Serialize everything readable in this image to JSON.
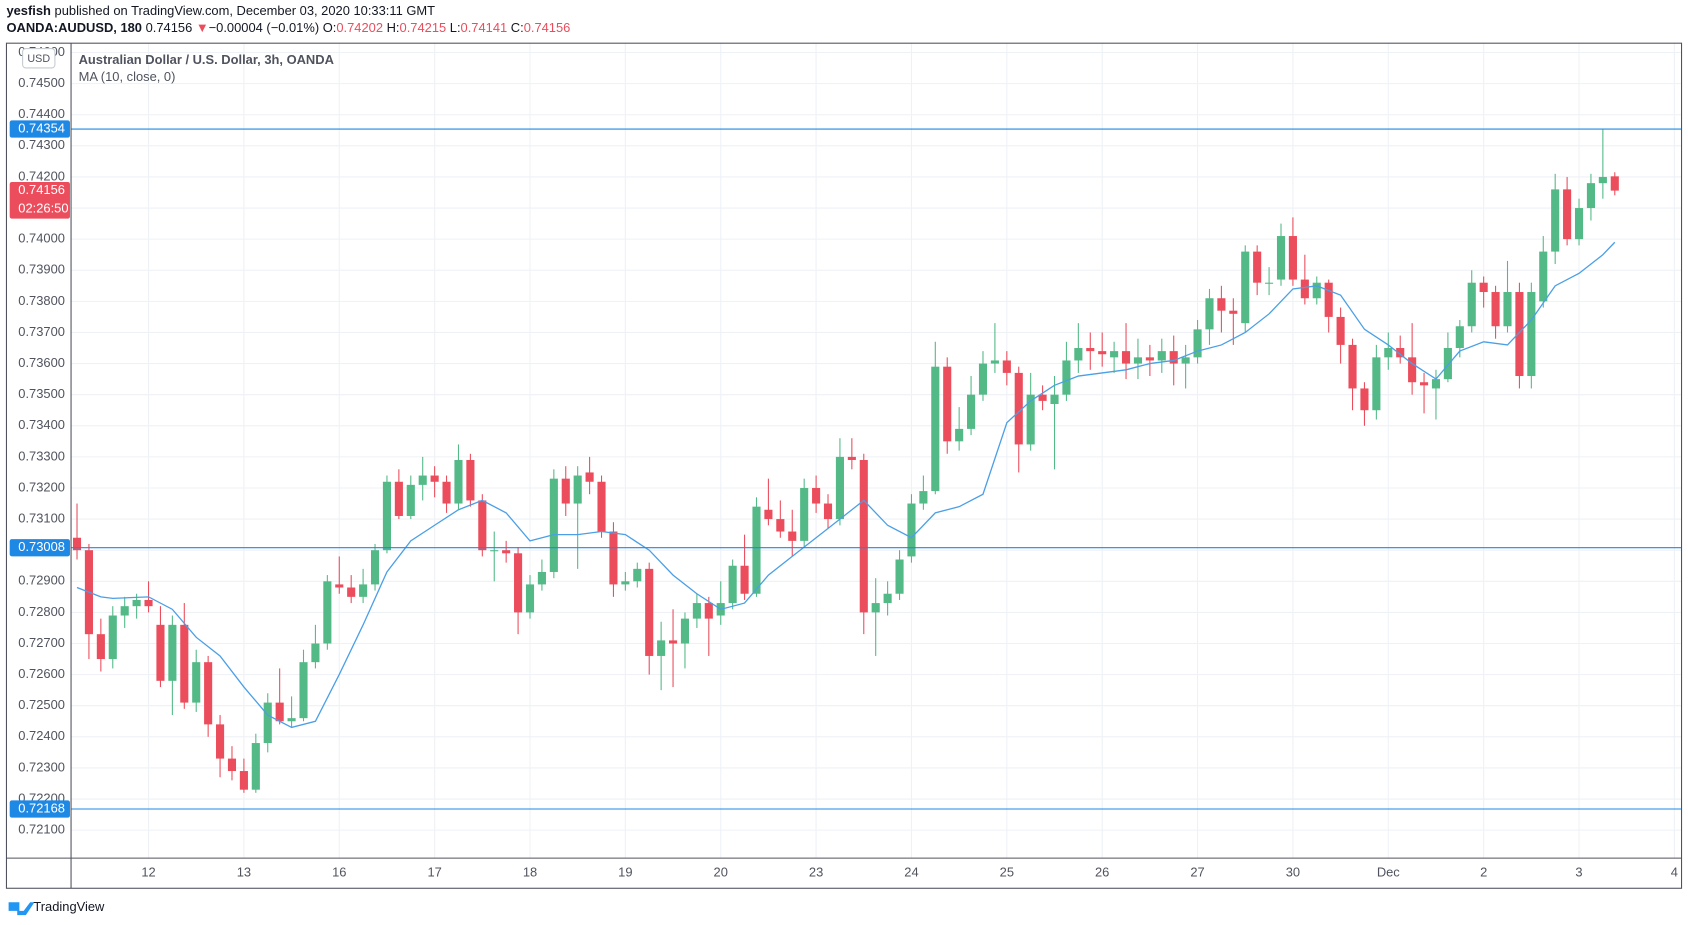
{
  "header": {
    "publisher": "yesfish",
    "published": "published on TradingView.com, December 03, 2020 10:33:11 GMT",
    "symbol": "OANDA:AUDUSD, 180",
    "last": "0.74156",
    "arrow": "▼",
    "change": "−0.00004 (−0.01%)",
    "o_label": "O:",
    "o": "0.74202",
    "h_label": "H:",
    "h": "0.74215",
    "l_label": "L:",
    "l": "0.74141",
    "c_label": "C:",
    "c": "0.74156",
    "legend_title": "Australian Dollar / U.S. Dollar, 3h, OANDA",
    "indicator": "MA (10, close, 0)",
    "currency": "USD",
    "brand": "TradingView"
  },
  "chart_data": {
    "type": "candlestick",
    "up_color": "#53b987",
    "down_color": "#eb4d5c",
    "ma_color": "#4a9fe6",
    "level_color": "#1e88e5",
    "grid": true,
    "ylim": [
      0.7201,
      0.7463
    ],
    "xlim": [
      -0.5,
      134.6
    ],
    "yticks": [
      {
        "value": 0.721,
        "label": "0.72100"
      },
      {
        "value": 0.722,
        "label": "0.72200"
      },
      {
        "value": 0.723,
        "label": "0.72300"
      },
      {
        "value": 0.724,
        "label": "0.72400"
      },
      {
        "value": 0.725,
        "label": "0.72500"
      },
      {
        "value": 0.726,
        "label": "0.72600"
      },
      {
        "value": 0.727,
        "label": "0.72700"
      },
      {
        "value": 0.728,
        "label": "0.72800"
      },
      {
        "value": 0.729,
        "label": "0.72900"
      },
      {
        "value": 0.73,
        "label": "0.73000"
      },
      {
        "value": 0.731,
        "label": "0.73100"
      },
      {
        "value": 0.732,
        "label": "0.73200"
      },
      {
        "value": 0.733,
        "label": "0.73300"
      },
      {
        "value": 0.734,
        "label": "0.73400"
      },
      {
        "value": 0.735,
        "label": "0.73500"
      },
      {
        "value": 0.736,
        "label": "0.73600"
      },
      {
        "value": 0.737,
        "label": "0.73700"
      },
      {
        "value": 0.738,
        "label": "0.73800"
      },
      {
        "value": 0.739,
        "label": "0.73900"
      },
      {
        "value": 0.74,
        "label": "0.74000"
      },
      {
        "value": 0.741,
        "label": "0.74100"
      },
      {
        "value": 0.742,
        "label": "0.74200"
      },
      {
        "value": 0.743,
        "label": "0.74300"
      },
      {
        "value": 0.744,
        "label": "0.74400"
      },
      {
        "value": 0.745,
        "label": "0.74500"
      },
      {
        "value": 0.746,
        "label": "0.74600"
      }
    ],
    "xticks": [
      {
        "value": 6,
        "label": "12"
      },
      {
        "value": 14,
        "label": "13"
      },
      {
        "value": 22,
        "label": "16"
      },
      {
        "value": 30,
        "label": "17"
      },
      {
        "value": 38,
        "label": "18"
      },
      {
        "value": 46,
        "label": "19"
      },
      {
        "value": 54,
        "label": "20"
      },
      {
        "value": 62,
        "label": "23"
      },
      {
        "value": 70,
        "label": "24"
      },
      {
        "value": 78,
        "label": "25"
      },
      {
        "value": 86,
        "label": "26"
      },
      {
        "value": 94,
        "label": "27"
      },
      {
        "value": 102,
        "label": "30"
      },
      {
        "value": 110,
        "label": "Dec"
      },
      {
        "value": 118,
        "label": "2"
      },
      {
        "value": 126,
        "label": "3"
      },
      {
        "value": 134,
        "label": "4"
      }
    ],
    "levels": [
      {
        "value": 0.74354,
        "label": "0.74354"
      },
      {
        "value": 0.73008,
        "label": "0.73008"
      },
      {
        "value": 0.72168,
        "label": "0.72168"
      }
    ],
    "current": {
      "value": 0.74156,
      "label": "0.74156",
      "countdown": "02:26:50"
    },
    "ohlc": [
      [
        0.7304,
        0.7315,
        0.7297,
        0.73
      ],
      [
        0.73,
        0.7302,
        0.7265,
        0.7273
      ],
      [
        0.7273,
        0.7278,
        0.7261,
        0.7265
      ],
      [
        0.7265,
        0.7282,
        0.7262,
        0.7279
      ],
      [
        0.7279,
        0.7285,
        0.7275,
        0.7282
      ],
      [
        0.7282,
        0.7286,
        0.7278,
        0.7284
      ],
      [
        0.7284,
        0.729,
        0.728,
        0.7282
      ],
      [
        0.7276,
        0.7282,
        0.7256,
        0.7258
      ],
      [
        0.7258,
        0.7279,
        0.7247,
        0.7276
      ],
      [
        0.7276,
        0.7283,
        0.7249,
        0.7251
      ],
      [
        0.7251,
        0.7268,
        0.7248,
        0.7264
      ],
      [
        0.7264,
        0.7266,
        0.724,
        0.7244
      ],
      [
        0.7244,
        0.7247,
        0.7227,
        0.7233
      ],
      [
        0.7233,
        0.7237,
        0.7226,
        0.7229
      ],
      [
        0.7229,
        0.7233,
        0.7222,
        0.7223
      ],
      [
        0.7223,
        0.7241,
        0.7222,
        0.7238
      ],
      [
        0.7238,
        0.7254,
        0.7235,
        0.7251
      ],
      [
        0.7251,
        0.7262,
        0.7244,
        0.7245
      ],
      [
        0.7245,
        0.7253,
        0.7243,
        0.7246
      ],
      [
        0.7246,
        0.7268,
        0.7245,
        0.7264
      ],
      [
        0.7264,
        0.7276,
        0.7262,
        0.727
      ],
      [
        0.727,
        0.7292,
        0.7268,
        0.729
      ],
      [
        0.7289,
        0.7298,
        0.7286,
        0.7288
      ],
      [
        0.7288,
        0.7292,
        0.7283,
        0.7285
      ],
      [
        0.7285,
        0.7294,
        0.7283,
        0.7289
      ],
      [
        0.7289,
        0.7302,
        0.7287,
        0.73
      ],
      [
        0.73,
        0.7324,
        0.7299,
        0.7322
      ],
      [
        0.7322,
        0.7326,
        0.731,
        0.7311
      ],
      [
        0.7311,
        0.7324,
        0.731,
        0.7321
      ],
      [
        0.7321,
        0.733,
        0.7316,
        0.7324
      ],
      [
        0.7324,
        0.7327,
        0.7317,
        0.7322
      ],
      [
        0.7322,
        0.7324,
        0.7312,
        0.7315
      ],
      [
        0.7315,
        0.7334,
        0.7313,
        0.7329
      ],
      [
        0.7329,
        0.7331,
        0.7314,
        0.7316
      ],
      [
        0.7316,
        0.7318,
        0.7298,
        0.73
      ],
      [
        0.73,
        0.7306,
        0.729,
        0.73
      ],
      [
        0.73,
        0.7303,
        0.7296,
        0.7299
      ],
      [
        0.7299,
        0.7301,
        0.7273,
        0.728
      ],
      [
        0.728,
        0.7292,
        0.7278,
        0.7289
      ],
      [
        0.7289,
        0.7297,
        0.7287,
        0.7293
      ],
      [
        0.7293,
        0.7326,
        0.7291,
        0.7323
      ],
      [
        0.7323,
        0.7327,
        0.7311,
        0.7315
      ],
      [
        0.7315,
        0.7327,
        0.7294,
        0.7324
      ],
      [
        0.7325,
        0.733,
        0.7318,
        0.7322
      ],
      [
        0.7322,
        0.7324,
        0.7304,
        0.7306
      ],
      [
        0.7306,
        0.7309,
        0.7285,
        0.7289
      ],
      [
        0.7289,
        0.7293,
        0.7287,
        0.729
      ],
      [
        0.729,
        0.7296,
        0.7288,
        0.7294
      ],
      [
        0.7294,
        0.7296,
        0.726,
        0.7266
      ],
      [
        0.7266,
        0.7277,
        0.7255,
        0.7271
      ],
      [
        0.7271,
        0.7281,
        0.7256,
        0.727
      ],
      [
        0.727,
        0.728,
        0.7262,
        0.7278
      ],
      [
        0.7278,
        0.7286,
        0.7275,
        0.7283
      ],
      [
        0.7283,
        0.7285,
        0.7266,
        0.7278
      ],
      [
        0.7279,
        0.729,
        0.7276,
        0.7283
      ],
      [
        0.7283,
        0.7297,
        0.7281,
        0.7295
      ],
      [
        0.7295,
        0.7305,
        0.7284,
        0.7286
      ],
      [
        0.7286,
        0.7317,
        0.7285,
        0.7314
      ],
      [
        0.7313,
        0.7323,
        0.7308,
        0.731
      ],
      [
        0.731,
        0.7316,
        0.7304,
        0.7306
      ],
      [
        0.7306,
        0.7313,
        0.7298,
        0.7303
      ],
      [
        0.7303,
        0.7323,
        0.7301,
        0.732
      ],
      [
        0.732,
        0.7324,
        0.7312,
        0.7315
      ],
      [
        0.7315,
        0.7318,
        0.7307,
        0.731
      ],
      [
        0.731,
        0.7336,
        0.7308,
        0.733
      ],
      [
        0.733,
        0.7336,
        0.7326,
        0.7329
      ],
      [
        0.7329,
        0.7331,
        0.7273,
        0.728
      ],
      [
        0.728,
        0.7291,
        0.7266,
        0.7283
      ],
      [
        0.7283,
        0.729,
        0.7279,
        0.7286
      ],
      [
        0.7286,
        0.73,
        0.7284,
        0.7297
      ],
      [
        0.7298,
        0.7318,
        0.7296,
        0.7315
      ],
      [
        0.7315,
        0.7324,
        0.7313,
        0.7319
      ],
      [
        0.7319,
        0.7367,
        0.7318,
        0.7359
      ],
      [
        0.7359,
        0.7362,
        0.7331,
        0.7335
      ],
      [
        0.7335,
        0.7346,
        0.7332,
        0.7339
      ],
      [
        0.7339,
        0.7356,
        0.7337,
        0.735
      ],
      [
        0.735,
        0.7364,
        0.7348,
        0.736
      ],
      [
        0.736,
        0.7373,
        0.7357,
        0.7361
      ],
      [
        0.7361,
        0.7364,
        0.7353,
        0.7357
      ],
      [
        0.7357,
        0.7359,
        0.7325,
        0.7334
      ],
      [
        0.7334,
        0.7357,
        0.7332,
        0.735
      ],
      [
        0.735,
        0.7353,
        0.7345,
        0.7348
      ],
      [
        0.7347,
        0.7356,
        0.7326,
        0.735
      ],
      [
        0.735,
        0.7367,
        0.7348,
        0.7361
      ],
      [
        0.7361,
        0.7373,
        0.7357,
        0.7365
      ],
      [
        0.7365,
        0.737,
        0.7358,
        0.7364
      ],
      [
        0.7364,
        0.737,
        0.7359,
        0.7363
      ],
      [
        0.7362,
        0.7367,
        0.7357,
        0.7364
      ],
      [
        0.7364,
        0.7373,
        0.7355,
        0.736
      ],
      [
        0.736,
        0.7368,
        0.7355,
        0.7362
      ],
      [
        0.7362,
        0.7366,
        0.7356,
        0.7361
      ],
      [
        0.7361,
        0.7368,
        0.7357,
        0.7364
      ],
      [
        0.7364,
        0.7369,
        0.7353,
        0.736
      ],
      [
        0.736,
        0.7366,
        0.7352,
        0.7362
      ],
      [
        0.7362,
        0.7374,
        0.736,
        0.7371
      ],
      [
        0.7371,
        0.7384,
        0.7366,
        0.7381
      ],
      [
        0.7381,
        0.7385,
        0.737,
        0.7377
      ],
      [
        0.7377,
        0.7381,
        0.7366,
        0.7376
      ],
      [
        0.7373,
        0.7398,
        0.737,
        0.7396
      ],
      [
        0.7396,
        0.7398,
        0.7382,
        0.7386
      ],
      [
        0.7386,
        0.7391,
        0.7382,
        0.7386
      ],
      [
        0.7387,
        0.7405,
        0.7385,
        0.7401
      ],
      [
        0.7401,
        0.7407,
        0.7385,
        0.7387
      ],
      [
        0.7387,
        0.7395,
        0.7379,
        0.7381
      ],
      [
        0.7381,
        0.7388,
        0.7379,
        0.7386
      ],
      [
        0.7386,
        0.7387,
        0.737,
        0.7375
      ],
      [
        0.7375,
        0.7378,
        0.736,
        0.7366
      ],
      [
        0.7366,
        0.7368,
        0.7345,
        0.7352
      ],
      [
        0.7352,
        0.7354,
        0.734,
        0.7345
      ],
      [
        0.7345,
        0.7366,
        0.7342,
        0.7362
      ],
      [
        0.7362,
        0.737,
        0.7358,
        0.7365
      ],
      [
        0.7365,
        0.7369,
        0.736,
        0.7362
      ],
      [
        0.7362,
        0.7373,
        0.735,
        0.7354
      ],
      [
        0.7354,
        0.7357,
        0.7344,
        0.7353
      ],
      [
        0.7352,
        0.7358,
        0.7342,
        0.7355
      ],
      [
        0.7355,
        0.737,
        0.7354,
        0.7365
      ],
      [
        0.7365,
        0.7374,
        0.7362,
        0.7372
      ],
      [
        0.7372,
        0.739,
        0.737,
        0.7386
      ],
      [
        0.7386,
        0.7388,
        0.7378,
        0.7383
      ],
      [
        0.7383,
        0.7385,
        0.7368,
        0.7372
      ],
      [
        0.7372,
        0.7393,
        0.737,
        0.7383
      ],
      [
        0.7383,
        0.7386,
        0.7352,
        0.7356
      ],
      [
        0.7356,
        0.7386,
        0.7352,
        0.7383
      ],
      [
        0.738,
        0.7401,
        0.7378,
        0.7396
      ],
      [
        0.7396,
        0.7421,
        0.7392,
        0.7416
      ],
      [
        0.7416,
        0.742,
        0.7398,
        0.74
      ],
      [
        0.74,
        0.7413,
        0.7398,
        0.741
      ],
      [
        0.741,
        0.7421,
        0.7406,
        0.7418
      ],
      [
        0.7418,
        0.74354,
        0.7413,
        0.742
      ],
      [
        0.74202,
        0.74215,
        0.74141,
        0.74156
      ]
    ],
    "ma": {
      "x": [
        0,
        2,
        3,
        6,
        8,
        10,
        12,
        14,
        16,
        18,
        20,
        22,
        24,
        26,
        28,
        30,
        32,
        34,
        36,
        38,
        40,
        42,
        44,
        46,
        48,
        50,
        52,
        54,
        56,
        58,
        60,
        62,
        64,
        66,
        68,
        70,
        72,
        74,
        76,
        78,
        80,
        82,
        84,
        86,
        88,
        90,
        92,
        94,
        96,
        98,
        100,
        102,
        104,
        106,
        108,
        110,
        112,
        114,
        116,
        118,
        120,
        122,
        124,
        126,
        128,
        129
      ],
      "values": [
        0.7288,
        0.7285,
        0.72845,
        0.7285,
        0.7281,
        0.7272,
        0.7266,
        0.7256,
        0.7247,
        0.7243,
        0.7245,
        0.726,
        0.7276,
        0.7293,
        0.7303,
        0.7308,
        0.7313,
        0.7316,
        0.7312,
        0.7303,
        0.7305,
        0.7305,
        0.7306,
        0.7305,
        0.73,
        0.7292,
        0.7286,
        0.7281,
        0.7283,
        0.7292,
        0.7298,
        0.7304,
        0.731,
        0.7316,
        0.7308,
        0.7304,
        0.7312,
        0.7314,
        0.7318,
        0.7341,
        0.7348,
        0.7353,
        0.7356,
        0.7357,
        0.7358,
        0.736,
        0.7361,
        0.7364,
        0.7366,
        0.737,
        0.7376,
        0.7384,
        0.7385,
        0.7382,
        0.7371,
        0.7366,
        0.736,
        0.7355,
        0.7364,
        0.7367,
        0.7366,
        0.7374,
        0.7385,
        0.7389,
        0.7395,
        0.7399
      ]
    }
  }
}
